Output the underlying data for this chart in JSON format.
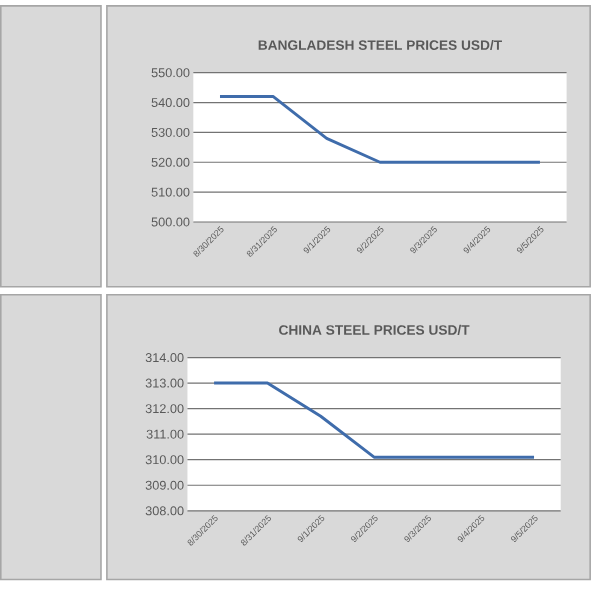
{
  "chart_data": [
    {
      "type": "line",
      "title": "BANGLADESH STEEL PRICES USD/T",
      "categories": [
        "8/30/2025",
        "8/31/2025",
        "9/1/2025",
        "9/2/2025",
        "9/3/2025",
        "9/4/2025",
        "9/5/2025"
      ],
      "values": [
        542,
        542,
        528,
        520,
        520,
        520,
        520
      ],
      "color": "#3f6cab",
      "ylim": [
        500,
        550
      ],
      "yticks": [
        {
          "value": 500,
          "label": "500.00"
        },
        {
          "value": 510,
          "label": "510.00"
        },
        {
          "value": 520,
          "label": "520.00"
        },
        {
          "value": 530,
          "label": "530.00"
        },
        {
          "value": 540,
          "label": "540.00"
        },
        {
          "value": 550,
          "label": "550.00"
        }
      ],
      "grid": "y"
    },
    {
      "type": "line",
      "title": "CHINA STEEL PRICES USD/T",
      "categories": [
        "8/30/2025",
        "8/31/2025",
        "9/1/2025",
        "9/2/2025",
        "9/3/2025",
        "9/4/2025",
        "9/5/2025"
      ],
      "values": [
        313,
        313,
        311.7,
        310.1,
        310.1,
        310.1,
        310.1
      ],
      "color": "#3f6cab",
      "ylim": [
        308,
        314
      ],
      "yticks": [
        {
          "value": 308,
          "label": "308.00"
        },
        {
          "value": 309,
          "label": "309.00"
        },
        {
          "value": 310,
          "label": "310.00"
        },
        {
          "value": 311,
          "label": "311.00"
        },
        {
          "value": 312,
          "label": "312.00"
        },
        {
          "value": 313,
          "label": "313.00"
        },
        {
          "value": 314,
          "label": "314.00"
        }
      ],
      "grid": "y"
    }
  ]
}
